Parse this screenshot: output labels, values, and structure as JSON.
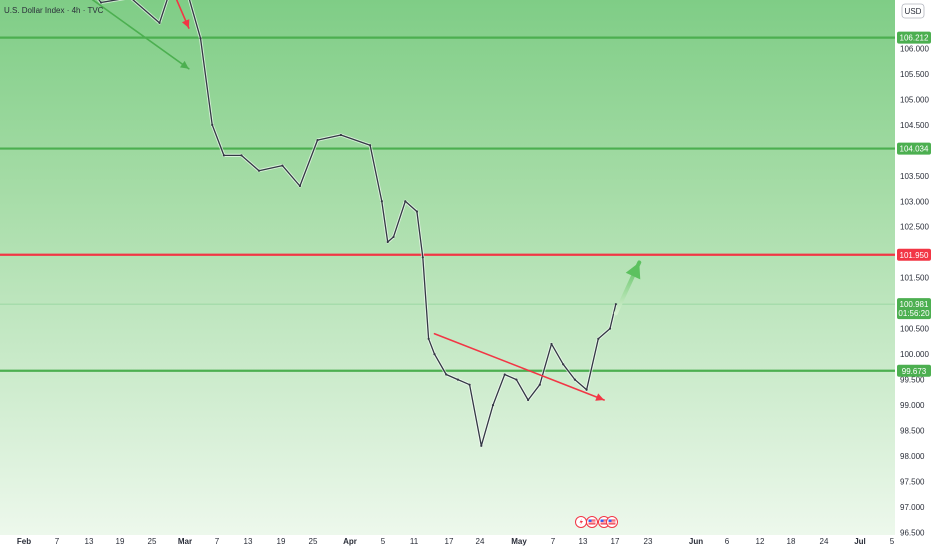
{
  "chart_data": {
    "type": "candlestick",
    "title": "U.S. Dollar Index · 4h · TVC",
    "currency": "USD",
    "y_range": [
      96.45,
      106.95
    ],
    "y_ticks": [
      "106.000",
      "105.500",
      "105.000",
      "104.500",
      "104.000",
      "103.500",
      "103.000",
      "102.500",
      "102.000",
      "101.500",
      "101.000",
      "100.500",
      "100.000",
      "99.500",
      "99.000",
      "98.500",
      "98.000",
      "97.500",
      "97.000",
      "96.500"
    ],
    "x_ticks": [
      "Feb",
      "7",
      "13",
      "19",
      "25",
      "Mar",
      "7",
      "13",
      "19",
      "25",
      "Apr",
      "5",
      "11",
      "17",
      "24",
      "May",
      "7",
      "13",
      "17",
      "23",
      "Jun",
      "6",
      "12",
      "18",
      "24",
      "Jul",
      "5"
    ],
    "support_resistance_levels": [
      {
        "value": 106.212,
        "label": "106.212",
        "color": "#4caf50"
      },
      {
        "value": 104.034,
        "label": "104.034",
        "color": "#4caf50"
      },
      {
        "value": 101.95,
        "label": "101.950",
        "color": "#f23645"
      },
      {
        "value": 99.673,
        "label": "99.673",
        "color": "#4caf50"
      }
    ],
    "current_price": {
      "value": 100.981,
      "label": "100.981",
      "countdown": "01:56:20",
      "color": "#4caf50"
    },
    "price_path": [
      {
        "date": "Feb 5",
        "price": 107.4
      },
      {
        "date": "Feb 10",
        "price": 107.5
      },
      {
        "date": "Feb 14",
        "price": 106.9
      },
      {
        "date": "Feb 19",
        "price": 107.0
      },
      {
        "date": "Feb 24",
        "price": 106.5
      },
      {
        "date": "Feb 26",
        "price": 107.2
      },
      {
        "date": "Mar 1",
        "price": 107.0
      },
      {
        "date": "Mar 3",
        "price": 106.2
      },
      {
        "date": "Mar 5",
        "price": 104.5
      },
      {
        "date": "Mar 7",
        "price": 103.9
      },
      {
        "date": "Mar 10",
        "price": 103.9
      },
      {
        "date": "Mar 13",
        "price": 103.6
      },
      {
        "date": "Mar 17",
        "price": 103.7
      },
      {
        "date": "Mar 20",
        "price": 103.3
      },
      {
        "date": "Mar 23",
        "price": 104.2
      },
      {
        "date": "Mar 27",
        "price": 104.3
      },
      {
        "date": "Apr 1",
        "price": 104.1
      },
      {
        "date": "Apr 3",
        "price": 103.0
      },
      {
        "date": "Apr 4",
        "price": 102.2
      },
      {
        "date": "Apr 5",
        "price": 102.3
      },
      {
        "date": "Apr 7",
        "price": 103.0
      },
      {
        "date": "Apr 9",
        "price": 102.8
      },
      {
        "date": "Apr 10",
        "price": 101.9
      },
      {
        "date": "Apr 11",
        "price": 100.3
      },
      {
        "date": "Apr 12",
        "price": 100.0
      },
      {
        "date": "Apr 14",
        "price": 99.6
      },
      {
        "date": "Apr 16",
        "price": 99.5
      },
      {
        "date": "Apr 18",
        "price": 99.4
      },
      {
        "date": "Apr 20",
        "price": 98.2
      },
      {
        "date": "Apr 22",
        "price": 99.0
      },
      {
        "date": "Apr 24",
        "price": 99.6
      },
      {
        "date": "Apr 26",
        "price": 99.5
      },
      {
        "date": "Apr 28",
        "price": 99.1
      },
      {
        "date": "Apr 30",
        "price": 99.4
      },
      {
        "date": "May 2",
        "price": 100.2
      },
      {
        "date": "May 4",
        "price": 99.8
      },
      {
        "date": "May 6",
        "price": 99.5
      },
      {
        "date": "May 8",
        "price": 99.3
      },
      {
        "date": "May 10",
        "price": 100.3
      },
      {
        "date": "May 12",
        "price": 100.5
      },
      {
        "date": "May 13",
        "price": 100.98
      }
    ],
    "annotations": [
      {
        "type": "arrow",
        "color": "#f23645",
        "from": {
          "date": "Feb 26",
          "price": 107.2
        },
        "to": {
          "date": "Mar 1",
          "price": 106.4
        }
      },
      {
        "type": "arrow",
        "color": "#4caf50",
        "from": {
          "date": "Feb 12",
          "price": 107.0
        },
        "to": {
          "date": "Mar 1",
          "price": 105.6
        }
      },
      {
        "type": "arrow",
        "color": "#f23645",
        "from": {
          "date": "Apr 12",
          "price": 100.4
        },
        "to": {
          "date": "May 11",
          "price": 99.1
        }
      },
      {
        "type": "arrow",
        "color": "#4caf50",
        "from": {
          "date": "May 13",
          "price": 100.8
        },
        "to": {
          "date": "May 17",
          "price": 101.8
        }
      }
    ],
    "grid": false
  }
}
